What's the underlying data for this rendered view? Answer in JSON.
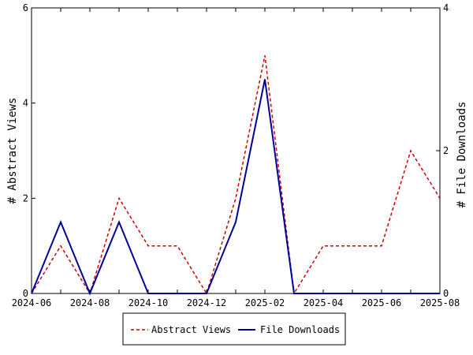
{
  "chart_data": {
    "type": "line",
    "title": "",
    "x": [
      "2024-06",
      "2024-07",
      "2024-08",
      "2024-09",
      "2024-10",
      "2024-11",
      "2024-12",
      "2025-01",
      "2025-02",
      "2025-03",
      "2025-04",
      "2025-05",
      "2025-06",
      "2025-07",
      "2025-08"
    ],
    "x_ticks": [
      "2024-06",
      "2024-08",
      "2024-10",
      "2024-12",
      "2025-02",
      "2025-04",
      "2025-06",
      "2025-08"
    ],
    "series": [
      {
        "name": "Abstract Views",
        "axis": "left",
        "color": "#cc0000",
        "dash": "dashed",
        "values": [
          0,
          1,
          0,
          2,
          1,
          1,
          0,
          2,
          5,
          0,
          1,
          1,
          1,
          3,
          2
        ]
      },
      {
        "name": "File Downloads",
        "axis": "right",
        "color": "#000099",
        "dash": "solid",
        "values": [
          0,
          1,
          0,
          1,
          0,
          0,
          0,
          1,
          3,
          0,
          0,
          0,
          0,
          0,
          0
        ]
      }
    ],
    "ylabel": "# Abstract Views",
    "ylim": [
      0,
      6
    ],
    "y_ticks": [
      "0",
      "2",
      "4",
      "6"
    ],
    "ylabel_right": "# File Downloads",
    "ylim_right": [
      0,
      4
    ],
    "y_ticks_right": [
      "0",
      "2",
      "4"
    ],
    "grid": false,
    "legend_position": "bottom"
  }
}
